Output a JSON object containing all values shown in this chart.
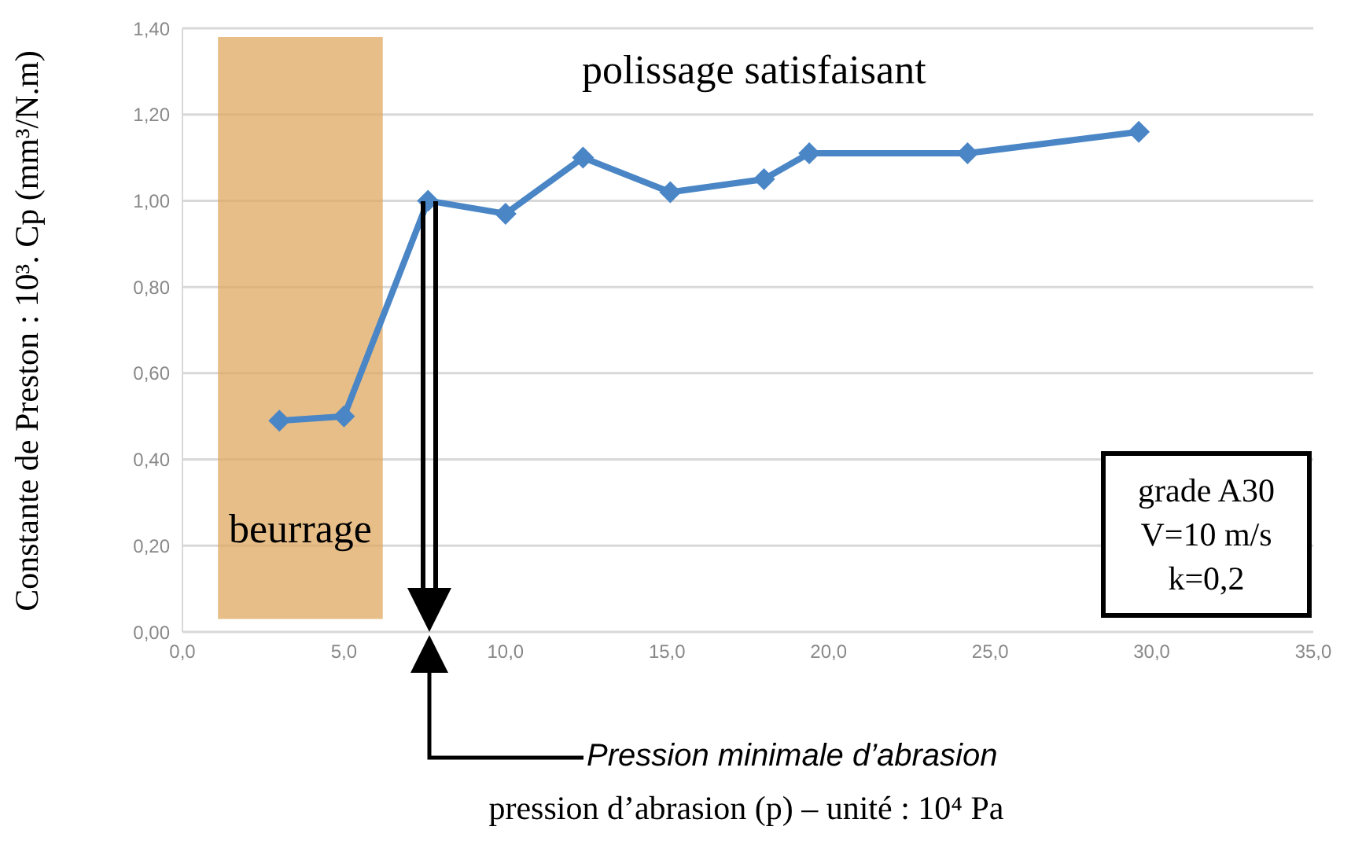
{
  "chart_data": {
    "type": "line",
    "xlabel": "pression d’abrasion (p) – unité : 10⁴ Pa",
    "ylabel": "Constante de Preston : 10³. Cp (mm³/N.m)",
    "x": [
      3.0,
      5.0,
      7.6,
      10.0,
      12.4,
      15.1,
      18.0,
      19.4,
      24.3,
      29.6
    ],
    "series": [
      {
        "color": "#4a86c5",
        "values": [
          0.49,
          0.5,
          1.0,
          0.97,
          1.1,
          1.02,
          1.05,
          1.11,
          1.11,
          1.16
        ]
      }
    ],
    "xlim": [
      0,
      35
    ],
    "xticks": [
      {
        "value": 0,
        "label": "0,0"
      },
      {
        "value": 5,
        "label": "5,0"
      },
      {
        "value": 10,
        "label": "10,0"
      },
      {
        "value": 15,
        "label": "15,0"
      },
      {
        "value": 20,
        "label": "20,0"
      },
      {
        "value": 25,
        "label": "25,0"
      },
      {
        "value": 30,
        "label": "30,0"
      },
      {
        "value": 35,
        "label": "35,0"
      }
    ],
    "ylim": [
      0,
      1.4
    ],
    "yticks": [
      {
        "value": 0,
        "label": "0,00"
      },
      {
        "value": 0.2,
        "label": "0,20"
      },
      {
        "value": 0.4,
        "label": "0,40"
      },
      {
        "value": 0.6,
        "label": "0,60"
      },
      {
        "value": 0.8,
        "label": "0,80"
      },
      {
        "value": 1.0,
        "label": "1,00"
      },
      {
        "value": 1.2,
        "label": "1,20"
      },
      {
        "value": 1.4,
        "label": "1,40"
      }
    ],
    "grid": "y",
    "marker": "diamond",
    "line_style": "solid",
    "bands": [
      {
        "axis": "x",
        "from": 1.1,
        "to": 6.2,
        "label": "beurrage",
        "color": "#e0a860"
      }
    ],
    "annotations": [
      "polissage satisfaisant",
      "grade A30\nV=10 m/s\nk=0,2",
      "Pression minimale d’abrasion"
    ]
  }
}
